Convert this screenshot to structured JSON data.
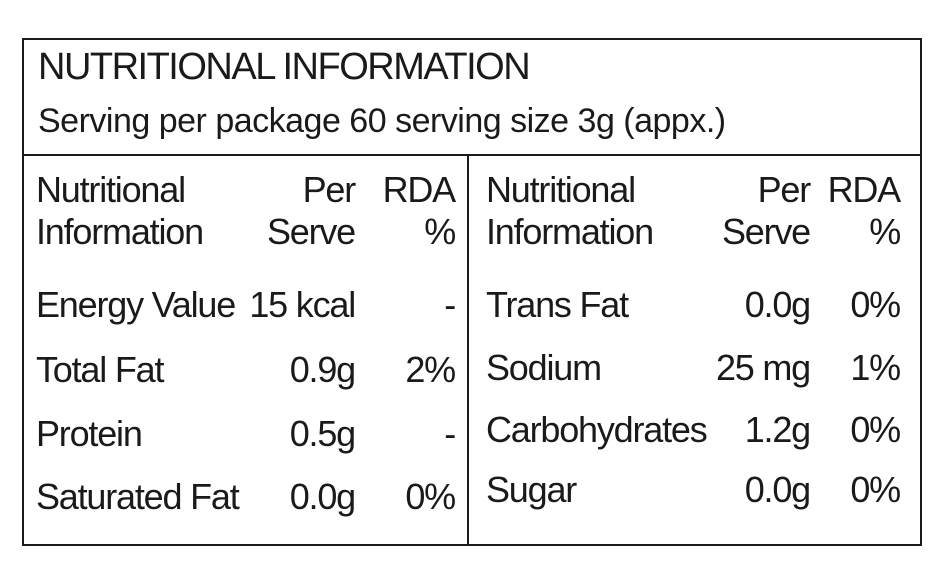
{
  "header": {
    "title": "NUTRITIONAL INFORMATION",
    "subtitle": "Serving per package 60 serving size 3g (appx.)"
  },
  "tables": [
    {
      "columns": [
        [
          "Nutritional",
          "Information"
        ],
        [
          "Per",
          "Serve"
        ],
        [
          "RDA",
          "%"
        ]
      ],
      "rows": [
        [
          "Energy Value",
          "15 kcal",
          "-"
        ],
        [
          "Total Fat",
          "0.9g",
          "2%"
        ],
        [
          "Protein",
          "0.5g",
          "-"
        ],
        [
          "Saturated Fat",
          "0.0g",
          "0%"
        ]
      ]
    },
    {
      "columns": [
        [
          "Nutritional",
          "Information"
        ],
        [
          "Per",
          "Serve"
        ],
        [
          "RDA",
          "%"
        ]
      ],
      "rows": [
        [
          "Trans Fat",
          "0.0g",
          "0%"
        ],
        [
          "Sodium",
          "25 mg",
          "1%"
        ],
        [
          "Carbohydrates",
          "1.2g",
          "0%"
        ],
        [
          "Sugar",
          "0.0g",
          "0%"
        ]
      ]
    }
  ]
}
